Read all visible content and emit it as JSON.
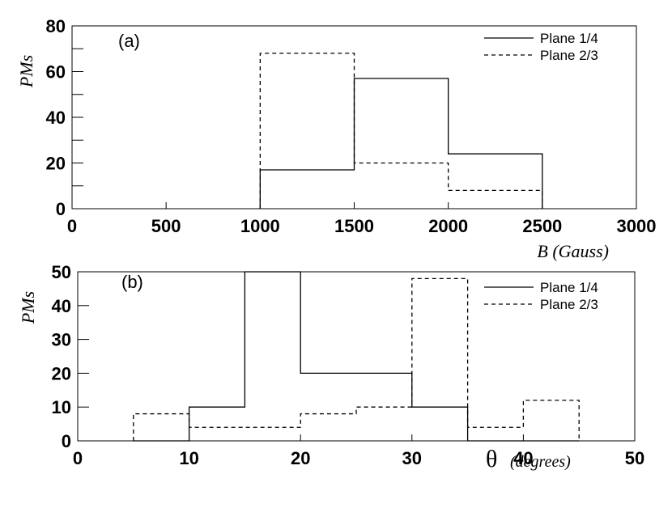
{
  "chart_data": [
    {
      "type": "histogram",
      "panel_label": "(a)",
      "xlabel": "B (Gauss)",
      "ylabel": "PMs",
      "xlim": [
        0,
        3000
      ],
      "ylim": [
        0,
        80
      ],
      "xticks": [
        0,
        500,
        1000,
        1500,
        2000,
        2500,
        3000
      ],
      "yticks": [
        0,
        20,
        40,
        60,
        80
      ],
      "legend_position": "top-right",
      "bin_edges": [
        1000,
        1500,
        2000,
        2500
      ],
      "series": [
        {
          "name": "Plane 1/4",
          "style": "solid",
          "values": [
            17,
            57,
            24
          ]
        },
        {
          "name": "Plane 2/3",
          "style": "dashed",
          "values": [
            68,
            20,
            8
          ]
        }
      ]
    },
    {
      "type": "histogram",
      "panel_label": "(b)",
      "xlabel_symbol": "θ",
      "xlabel_unit": "(degrees)",
      "ylabel": "PMs",
      "xlim": [
        0,
        50
      ],
      "ylim": [
        0,
        50
      ],
      "xticks": [
        0,
        10,
        20,
        30,
        40,
        50
      ],
      "yticks": [
        0,
        10,
        20,
        30,
        40,
        50
      ],
      "legend_position": "top-right",
      "bin_edges": [
        5,
        10,
        15,
        20,
        25,
        30,
        35,
        40,
        45
      ],
      "series": [
        {
          "name": "Plane 1/4",
          "style": "solid",
          "values": [
            0,
            10,
            50,
            20,
            20,
            10,
            0,
            0
          ]
        },
        {
          "name": "Plane 2/3",
          "style": "dashed",
          "values": [
            8,
            4,
            4,
            8,
            10,
            48,
            4,
            12
          ]
        }
      ]
    }
  ]
}
